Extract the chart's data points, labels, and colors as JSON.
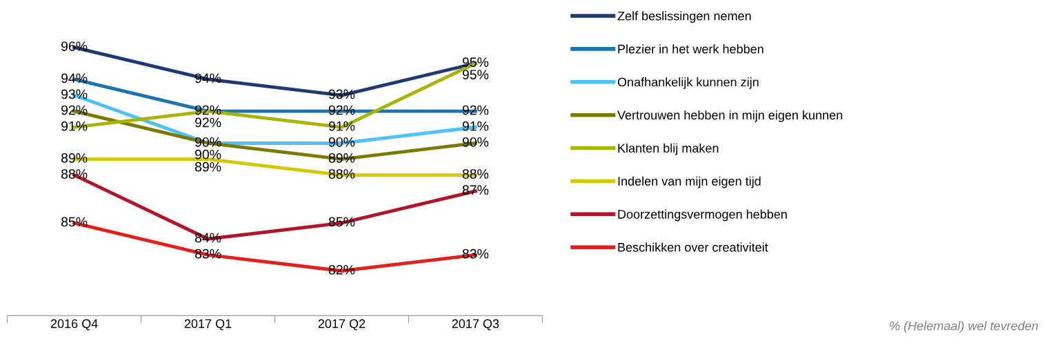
{
  "chart_data": {
    "type": "line",
    "categories": [
      "2016 Q4",
      "2017 Q1",
      "2017 Q2",
      "2017 Q3"
    ],
    "series": [
      {
        "name": "Zelf beslissingen nemen",
        "color": "#1f3a73",
        "values": [
          96,
          94,
          93,
          95
        ],
        "value_labels": [
          "96%",
          "94%",
          "93%",
          "95%"
        ]
      },
      {
        "name": "Plezier in het werk hebben",
        "color": "#1a75b0",
        "values": [
          94,
          92,
          92,
          92
        ],
        "value_labels": [
          "94%",
          "92%",
          "92%",
          "92%"
        ]
      },
      {
        "name": "Onafhankelijk kunnen zijn",
        "color": "#4dc3f5",
        "values": [
          93,
          90,
          90,
          91
        ],
        "value_labels": [
          "93%",
          "90%",
          "90%",
          "91%"
        ]
      },
      {
        "name": "Vertrouwen hebben in mijn eigen kunnen",
        "color": "#7a7a00",
        "values": [
          92,
          90,
          89,
          90
        ],
        "value_labels": [
          "92%",
          "90%",
          "89%",
          "90%"
        ]
      },
      {
        "name": "Klanten blij maken",
        "color": "#a8b400",
        "values": [
          91,
          92,
          91,
          95
        ],
        "value_labels": [
          "91%",
          "92%",
          "91%",
          "95%"
        ]
      },
      {
        "name": "Indelen van mijn eigen tijd",
        "color": "#d4c800",
        "values": [
          89,
          89,
          88,
          88
        ],
        "value_labels": [
          "89%",
          "89%",
          "88%",
          "88%"
        ]
      },
      {
        "name": "Doorzettingsvermogen hebben",
        "color": "#b0152a",
        "values": [
          88,
          84,
          85,
          87
        ],
        "value_labels": [
          "88%",
          "84%",
          "85%",
          "87%"
        ]
      },
      {
        "name": "Beschikken over creativiteit",
        "color": "#e3201b",
        "values": [
          85,
          83,
          82,
          83
        ],
        "value_labels": [
          "85%",
          "83%",
          "82%",
          "83%"
        ]
      }
    ],
    "legend": "right",
    "grid": false,
    "marker": "none",
    "line_style": "solid",
    "annotations": [
      "% (Helemaal) wel tevreden"
    ]
  }
}
